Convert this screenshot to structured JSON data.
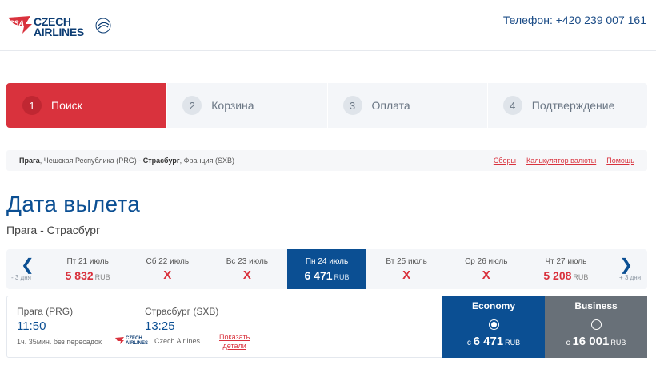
{
  "header": {
    "logo_text_line1": "CZECH",
    "logo_text_line2": "AIRLINES",
    "logo_mark": "CSA",
    "phone": "Телефон: +420 239 007 161"
  },
  "steps": [
    {
      "num": "1",
      "label": "Поиск",
      "active": true
    },
    {
      "num": "2",
      "label": "Корзина",
      "active": false
    },
    {
      "num": "3",
      "label": "Оплата",
      "active": false
    },
    {
      "num": "4",
      "label": "Подтверждение",
      "active": false
    }
  ],
  "route_bar": {
    "origin_city": "Прага",
    "origin_rest": ", Чешская Республика (PRG) - ",
    "dest_city": "Страсбург",
    "dest_rest": ", Франция (SXB)",
    "links": [
      "Сборы",
      "Калькулятор валюты",
      "Помощь"
    ]
  },
  "page": {
    "title": "Дата вылета",
    "subtitle": "Прага - Страсбург"
  },
  "date_strip": {
    "prev_hint": "- 3 дня",
    "next_hint": "+ 3 дня",
    "prev_arrow": "❮",
    "next_arrow": "❯",
    "days": [
      {
        "label": "Пт 21 июль",
        "price": "5 832",
        "currency": "RUB",
        "available": true,
        "selected": false
      },
      {
        "label": "Сб 22 июль",
        "price": "",
        "currency": "",
        "available": false,
        "selected": false,
        "mark": "X"
      },
      {
        "label": "Вс 23 июль",
        "price": "",
        "currency": "",
        "available": false,
        "selected": false,
        "mark": "X"
      },
      {
        "label": "Пн 24 июль",
        "price": "6 471",
        "currency": "RUB",
        "available": true,
        "selected": true
      },
      {
        "label": "Вт 25 июль",
        "price": "",
        "currency": "",
        "available": false,
        "selected": false,
        "mark": "X"
      },
      {
        "label": "Ср 26 июль",
        "price": "",
        "currency": "",
        "available": false,
        "selected": false,
        "mark": "X"
      },
      {
        "label": "Чт 27 июль",
        "price": "5 208",
        "currency": "RUB",
        "available": true,
        "selected": false
      }
    ]
  },
  "flight": {
    "from": "Прага (PRG)",
    "dep_time": "11:50",
    "to": "Страсбург (SXB)",
    "arr_time": "13:25",
    "duration": "1ч. 35мин. без пересадок",
    "carrier": "Czech Airlines",
    "details_line1": "Показать",
    "details_line2": "детали",
    "fares": [
      {
        "name": "Economy",
        "prefix": "с",
        "price": "6 471",
        "currency": "RUB",
        "selected": true,
        "color": "#0b4f93"
      },
      {
        "name": "Business",
        "prefix": "с",
        "price": "16 001",
        "currency": "RUB",
        "selected": false,
        "color": "#687078"
      }
    ]
  },
  "colors": {
    "brand_red": "#d9323d",
    "brand_blue": "#0b4f93",
    "business_gray": "#687078"
  }
}
